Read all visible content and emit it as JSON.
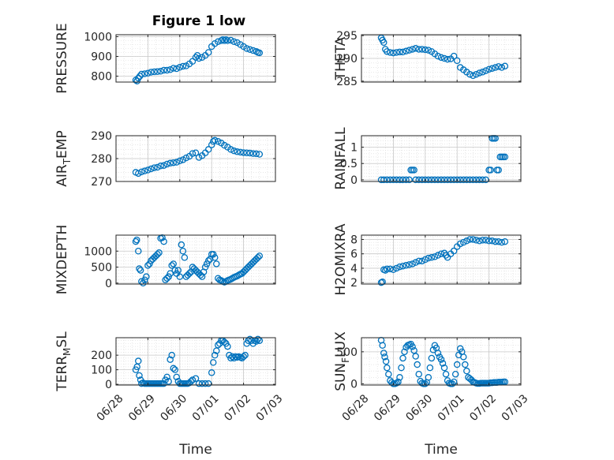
{
  "figure": {
    "title": "Figure 1 low",
    "marker_color": "#0072BD",
    "x_tick_labels": [
      "06/28",
      "06/29",
      "06/30",
      "07/01",
      "07/02",
      "07/03"
    ],
    "x_label": "Time"
  },
  "chart_data": [
    {
      "type": "scatter",
      "ylabel": "PRESSURE",
      "xlim": [
        0,
        5
      ],
      "ylim": [
        770,
        1010
      ],
      "yticks": [
        800,
        900,
        1000
      ],
      "grid": true,
      "x": [
        0.62,
        0.66,
        0.7,
        0.75,
        0.8,
        0.9,
        1.0,
        1.1,
        1.2,
        1.3,
        1.4,
        1.5,
        1.6,
        1.7,
        1.8,
        1.9,
        2.0,
        2.1,
        2.2,
        2.3,
        2.4,
        2.5,
        2.55,
        2.6,
        2.7,
        2.8,
        2.9,
        3.0,
        3.1,
        3.2,
        3.3,
        3.35,
        3.4,
        3.45,
        3.5,
        3.6,
        3.7,
        3.8,
        3.9,
        4.0,
        4.1,
        4.2,
        4.3,
        4.4,
        4.45,
        4.5
      ],
      "y": [
        780,
        775,
        790,
        800,
        810,
        812,
        815,
        820,
        822,
        823,
        825,
        830,
        830,
        833,
        840,
        838,
        845,
        850,
        852,
        862,
        875,
        895,
        905,
        890,
        895,
        905,
        920,
        950,
        965,
        975,
        980,
        985,
        980,
        985,
        980,
        982,
        975,
        970,
        960,
        950,
        940,
        935,
        930,
        925,
        920,
        918
      ]
    },
    {
      "type": "scatter",
      "ylabel": "THETA",
      "xlim": [
        0,
        5
      ],
      "ylim": [
        284.8,
        295.2
      ],
      "yticks": [
        285,
        290,
        295
      ],
      "grid": true,
      "x": [
        0.62,
        0.66,
        0.7,
        0.75,
        0.8,
        0.9,
        1.0,
        1.1,
        1.2,
        1.3,
        1.4,
        1.5,
        1.6,
        1.7,
        1.8,
        1.9,
        2.0,
        2.1,
        2.2,
        2.3,
        2.4,
        2.5,
        2.6,
        2.7,
        2.8,
        2.9,
        3.0,
        3.1,
        3.2,
        3.3,
        3.4,
        3.5,
        3.6,
        3.7,
        3.8,
        3.9,
        4.0,
        4.1,
        4.2,
        4.3,
        4.4,
        4.5
      ],
      "y": [
        294.5,
        294.0,
        293.5,
        292.0,
        291.5,
        291.3,
        291.2,
        291.3,
        291.4,
        291.4,
        291.6,
        291.8,
        292.0,
        292.2,
        292.0,
        292.0,
        291.9,
        291.8,
        291.5,
        291.0,
        290.5,
        290.2,
        290.0,
        289.8,
        289.9,
        290.5,
        289.5,
        288.0,
        287.5,
        287.0,
        286.5,
        286.2,
        286.5,
        286.8,
        287.0,
        287.3,
        287.6,
        287.8,
        288.0,
        288.2,
        288.0,
        288.3
      ]
    },
    {
      "type": "scatter",
      "ylabel": "AIR_TEMP",
      "xlim": [
        0,
        5
      ],
      "ylim": [
        270,
        290
      ],
      "yticks": [
        270,
        280,
        290
      ],
      "grid": true,
      "x": [
        0.62,
        0.7,
        0.8,
        0.9,
        1.0,
        1.1,
        1.2,
        1.3,
        1.4,
        1.5,
        1.6,
        1.7,
        1.8,
        1.9,
        2.0,
        2.1,
        2.2,
        2.3,
        2.4,
        2.5,
        2.6,
        2.7,
        2.8,
        2.9,
        3.0,
        3.05,
        3.1,
        3.2,
        3.3,
        3.4,
        3.5,
        3.6,
        3.7,
        3.8,
        3.9,
        4.0,
        4.1,
        4.2,
        4.3,
        4.4,
        4.5
      ],
      "y": [
        274,
        273.5,
        274.2,
        274.6,
        275.0,
        275.5,
        276.0,
        276.2,
        276.8,
        277.0,
        277.6,
        278.0,
        278.2,
        278.4,
        279.0,
        279.5,
        280.3,
        281.0,
        282.2,
        282.5,
        280.5,
        281.3,
        282.5,
        284.0,
        286.0,
        287.5,
        288.0,
        287.5,
        286.8,
        285.8,
        285.0,
        284.0,
        283.4,
        283.0,
        282.8,
        282.6,
        282.5,
        282.4,
        282.2,
        282.1,
        281.9
      ]
    },
    {
      "type": "scatter",
      "ylabel": "RAINFALL",
      "xlim": [
        0,
        5
      ],
      "ylim": [
        -0.05,
        1.35
      ],
      "yticks": [
        0,
        0.5,
        1
      ],
      "grid": true,
      "x": [
        0.62,
        0.7,
        0.8,
        0.9,
        1.0,
        1.1,
        1.2,
        1.3,
        1.4,
        1.5,
        1.55,
        1.6,
        1.65,
        1.7,
        1.8,
        1.9,
        2.0,
        2.1,
        2.2,
        2.3,
        2.4,
        2.5,
        2.6,
        2.7,
        2.8,
        2.9,
        3.0,
        3.1,
        3.2,
        3.3,
        3.4,
        3.5,
        3.6,
        3.7,
        3.8,
        3.9,
        4.0,
        4.05,
        4.1,
        4.15,
        4.2,
        4.25,
        4.3,
        4.35,
        4.4,
        4.45,
        4.5
      ],
      "y": [
        0,
        0,
        0,
        0,
        0,
        0,
        0,
        0,
        0,
        0,
        0.3,
        0.3,
        0.3,
        0,
        0,
        0,
        0,
        0,
        0,
        0,
        0,
        0,
        0,
        0,
        0,
        0,
        0,
        0,
        0,
        0,
        0,
        0,
        0,
        0,
        0,
        0,
        0.3,
        0.3,
        1.27,
        1.27,
        1.27,
        0.3,
        0.3,
        0.7,
        0.7,
        0.7,
        0.7
      ]
    },
    {
      "type": "scatter",
      "ylabel": "MIXDEPTH",
      "xlim": [
        0,
        5
      ],
      "ylim": [
        -30,
        1500
      ],
      "yticks": [
        0,
        500,
        1000
      ],
      "grid": true,
      "x": [
        0.62,
        0.65,
        0.7,
        0.73,
        0.77,
        0.8,
        0.85,
        0.9,
        0.95,
        1.0,
        1.05,
        1.1,
        1.15,
        1.2,
        1.25,
        1.3,
        1.35,
        1.4,
        1.45,
        1.5,
        1.55,
        1.6,
        1.65,
        1.7,
        1.75,
        1.8,
        1.85,
        1.9,
        1.95,
        2.0,
        2.05,
        2.1,
        2.15,
        2.2,
        2.25,
        2.3,
        2.35,
        2.4,
        2.45,
        2.5,
        2.55,
        2.6,
        2.65,
        2.7,
        2.75,
        2.8,
        2.85,
        2.9,
        2.95,
        3.0,
        3.05,
        3.1,
        3.15,
        3.2,
        3.25,
        3.3,
        3.35,
        3.4,
        3.45,
        3.5,
        3.55,
        3.6,
        3.65,
        3.7,
        3.75,
        3.8,
        3.85,
        3.9,
        3.95,
        4.0,
        4.05,
        4.1,
        4.15,
        4.2,
        4.25,
        4.3,
        4.35,
        4.4,
        4.45,
        4.5
      ],
      "y": [
        1300,
        1350,
        1000,
        450,
        400,
        50,
        0,
        100,
        200,
        550,
        600,
        700,
        750,
        800,
        850,
        900,
        950,
        1400,
        1420,
        1300,
        100,
        150,
        200,
        300,
        550,
        600,
        400,
        300,
        400,
        200,
        1200,
        1000,
        800,
        200,
        250,
        300,
        350,
        500,
        450,
        400,
        350,
        300,
        250,
        200,
        350,
        500,
        600,
        700,
        750,
        900,
        900,
        800,
        600,
        150,
        100,
        80,
        50,
        30,
        50,
        80,
        100,
        120,
        150,
        180,
        200,
        220,
        250,
        280,
        300,
        350,
        400,
        450,
        500,
        550,
        600,
        650,
        700,
        750,
        800,
        850
      ]
    },
    {
      "type": "scatter",
      "ylabel": "H2OMIXRA",
      "xlim": [
        0,
        5
      ],
      "ylim": [
        1.8,
        8.6
      ],
      "yticks": [
        2,
        4,
        6,
        8
      ],
      "grid": true,
      "x": [
        0.62,
        0.66,
        0.7,
        0.75,
        0.8,
        0.9,
        1.0,
        1.1,
        1.2,
        1.3,
        1.4,
        1.5,
        1.6,
        1.7,
        1.8,
        1.9,
        2.0,
        2.1,
        2.2,
        2.3,
        2.4,
        2.5,
        2.6,
        2.65,
        2.7,
        2.8,
        2.9,
        3.0,
        3.1,
        3.2,
        3.3,
        3.4,
        3.5,
        3.6,
        3.7,
        3.8,
        3.9,
        4.0,
        4.1,
        4.2,
        4.3,
        4.4,
        4.5
      ],
      "y": [
        2.0,
        2.1,
        3.8,
        3.7,
        3.9,
        3.9,
        3.8,
        4.0,
        4.2,
        4.3,
        4.4,
        4.5,
        4.6,
        4.8,
        5.0,
        5.0,
        5.2,
        5.4,
        5.5,
        5.6,
        5.8,
        6.0,
        6.1,
        5.8,
        5.5,
        6.0,
        6.4,
        7.0,
        7.4,
        7.6,
        7.8,
        8.0,
        8.0,
        7.9,
        7.8,
        7.9,
        7.9,
        7.8,
        7.8,
        7.7,
        7.7,
        7.6,
        7.7
      ]
    },
    {
      "type": "scatter",
      "ylabel": "TERR_MSL",
      "xlim": [
        0,
        5
      ],
      "ylim": [
        -5,
        320
      ],
      "yticks": [
        0,
        100,
        200
      ],
      "grid": true,
      "x": [
        0.62,
        0.66,
        0.7,
        0.73,
        0.77,
        0.8,
        0.85,
        0.9,
        0.95,
        1.0,
        1.05,
        1.1,
        1.15,
        1.2,
        1.25,
        1.3,
        1.35,
        1.4,
        1.45,
        1.5,
        1.55,
        1.6,
        1.65,
        1.7,
        1.75,
        1.8,
        1.85,
        1.9,
        1.95,
        2.0,
        2.05,
        2.1,
        2.15,
        2.2,
        2.25,
        2.3,
        2.35,
        2.4,
        2.5,
        2.6,
        2.7,
        2.8,
        2.9,
        3.0,
        3.05,
        3.1,
        3.15,
        3.2,
        3.25,
        3.3,
        3.35,
        3.4,
        3.45,
        3.5,
        3.55,
        3.6,
        3.65,
        3.7,
        3.75,
        3.8,
        3.85,
        3.9,
        3.95,
        4.0,
        4.05,
        4.1,
        4.15,
        4.2,
        4.25,
        4.3,
        4.35,
        4.4,
        4.45,
        4.5
      ],
      "y": [
        100,
        120,
        160,
        60,
        30,
        5,
        10,
        5,
        5,
        5,
        5,
        5,
        5,
        5,
        5,
        5,
        5,
        5,
        5,
        5,
        30,
        50,
        20,
        170,
        200,
        110,
        100,
        50,
        20,
        5,
        5,
        5,
        5,
        5,
        5,
        10,
        20,
        30,
        40,
        5,
        5,
        5,
        5,
        80,
        150,
        200,
        230,
        270,
        280,
        300,
        300,
        290,
        280,
        260,
        200,
        180,
        190,
        180,
        190,
        185,
        190,
        185,
        180,
        190,
        200,
        280,
        300,
        310,
        300,
        280,
        300,
        295,
        310,
        300
      ]
    },
    {
      "type": "scatter",
      "ylabel": "SUN_FLUX",
      "xlim": [
        0,
        5
      ],
      "ylim": [
        -20,
        720
      ],
      "yticks": [
        0,
        500
      ],
      "grid": true,
      "x": [
        0.62,
        0.66,
        0.7,
        0.73,
        0.77,
        0.8,
        0.85,
        0.9,
        0.95,
        1.0,
        1.05,
        1.1,
        1.15,
        1.2,
        1.25,
        1.3,
        1.35,
        1.4,
        1.45,
        1.5,
        1.55,
        1.6,
        1.65,
        1.7,
        1.75,
        1.8,
        1.85,
        1.9,
        1.95,
        2.0,
        2.05,
        2.1,
        2.15,
        2.2,
        2.25,
        2.3,
        2.35,
        2.4,
        2.45,
        2.5,
        2.55,
        2.6,
        2.65,
        2.7,
        2.75,
        2.8,
        2.85,
        2.9,
        2.95,
        3.0,
        3.05,
        3.1,
        3.15,
        3.2,
        3.25,
        3.3,
        3.35,
        3.4,
        3.45,
        3.5,
        3.55,
        3.6,
        3.65,
        3.7,
        3.75,
        3.8,
        3.85,
        3.9,
        3.95,
        4.0,
        4.05,
        4.1,
        4.15,
        4.2,
        4.25,
        4.3,
        4.35,
        4.4,
        4.45,
        4.5
      ],
      "y": [
        680,
        600,
        480,
        420,
        350,
        250,
        150,
        50,
        20,
        0,
        0,
        10,
        30,
        100,
        250,
        400,
        500,
        570,
        600,
        610,
        620,
        580,
        520,
        430,
        300,
        150,
        40,
        10,
        0,
        0,
        20,
        100,
        250,
        400,
        530,
        600,
        560,
        480,
        420,
        380,
        320,
        250,
        150,
        50,
        10,
        0,
        0,
        30,
        150,
        300,
        450,
        550,
        500,
        420,
        300,
        200,
        100,
        80,
        60,
        30,
        20,
        10,
        5,
        5,
        10,
        10,
        10,
        10,
        10,
        10,
        15,
        15,
        20,
        20,
        20,
        25,
        25,
        25,
        30,
        30
      ]
    }
  ]
}
